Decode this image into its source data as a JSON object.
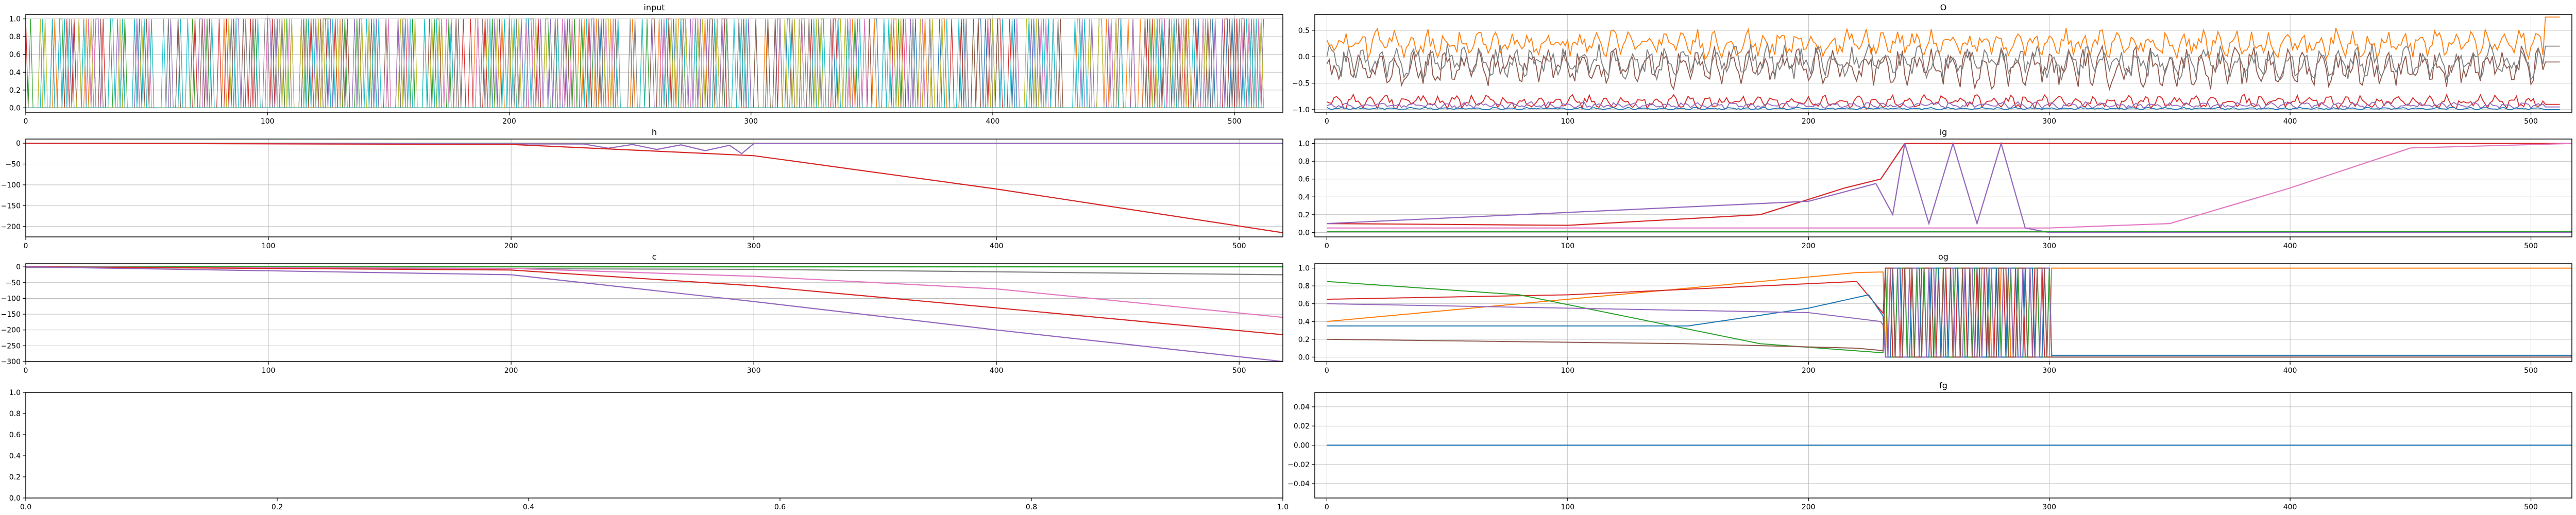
{
  "figure": {
    "palette": [
      "#1f77b4",
      "#ff7f0e",
      "#2ca02c",
      "#d62728",
      "#9467bd",
      "#8c564b",
      "#e377c2",
      "#7f7f7f",
      "#bcbd22",
      "#17becf"
    ]
  },
  "chart_data": [
    {
      "id": "input",
      "type": "line",
      "title": "input",
      "xlim": [
        0,
        520
      ],
      "ylim": [
        -0.05,
        1.05
      ],
      "xticks": [
        0,
        100,
        200,
        300,
        400,
        500
      ],
      "xtick_labels": [
        "0",
        "100",
        "200",
        "300",
        "400",
        "500"
      ],
      "yticks": [
        0.0,
        0.2,
        0.4,
        0.6,
        0.8,
        1.0
      ],
      "ytick_labels": [
        "0.0",
        "0.2",
        "0.4",
        "0.6",
        "0.8",
        "1.0"
      ],
      "grid": true,
      "series_count": 10,
      "description": "dense random one-hot style signals between 0 and 1 for steps 0-512"
    },
    {
      "id": "o",
      "type": "line",
      "title": "O",
      "xlim": [
        -5,
        517
      ],
      "ylim": [
        -1.05,
        0.8
      ],
      "xticks": [
        0,
        100,
        200,
        300,
        400,
        500
      ],
      "xtick_labels": [
        "0",
        "100",
        "200",
        "300",
        "400",
        "500"
      ],
      "yticks": [
        -1.0,
        -0.5,
        0.0,
        0.5
      ],
      "ytick_labels": [
        "−1.0",
        "−0.5",
        "0.0",
        "0.5"
      ],
      "grid": true,
      "series": [
        {
          "color_index": 1,
          "base": 0.25,
          "amp": 0.25,
          "end": 0.75
        },
        {
          "color_index": 5,
          "base": -0.2,
          "amp": 0.35,
          "end": -0.1
        },
        {
          "color_index": 7,
          "base": -0.1,
          "amp": 0.3,
          "end": 0.2
        },
        {
          "color_index": 3,
          "base": -0.85,
          "amp": 0.12,
          "end": -0.9
        },
        {
          "color_index": 4,
          "base": -0.92,
          "amp": 0.06,
          "end": -0.95
        },
        {
          "color_index": 0,
          "base": -0.98,
          "amp": 0.02,
          "end": -1.0
        }
      ]
    },
    {
      "id": "h",
      "type": "line",
      "title": "h",
      "xlim": [
        0,
        518
      ],
      "ylim": [
        -225,
        10
      ],
      "xticks": [
        0,
        100,
        200,
        300,
        400,
        500
      ],
      "xtick_labels": [
        "0",
        "100",
        "200",
        "300",
        "400",
        "500"
      ],
      "yticks": [
        0,
        -50,
        -100,
        -150,
        -200
      ],
      "ytick_labels": [
        "0",
        "−50",
        "−100",
        "−150",
        "−200"
      ],
      "grid": true,
      "series": [
        {
          "color_index": 2,
          "points": [
            [
              0,
              0
            ],
            [
              518,
              0
            ]
          ]
        },
        {
          "color_index": 7,
          "points": [
            [
              0,
              -1
            ],
            [
              518,
              -1
            ]
          ]
        },
        {
          "color_index": 4,
          "points": [
            [
              0,
              0
            ],
            [
              230,
              -2
            ],
            [
              240,
              -12
            ],
            [
              250,
              -3
            ],
            [
              260,
              -15
            ],
            [
              270,
              -4
            ],
            [
              280,
              -18
            ],
            [
              290,
              -5
            ],
            [
              295,
              -25
            ],
            [
              300,
              -1
            ],
            [
              518,
              -1
            ]
          ]
        },
        {
          "color_index": 3,
          "points": [
            [
              0,
              0
            ],
            [
              200,
              -3
            ],
            [
              300,
              -30
            ],
            [
              400,
              -110
            ],
            [
              518,
              -215
            ]
          ]
        }
      ]
    },
    {
      "id": "ig",
      "type": "line",
      "title": "ig",
      "xlim": [
        -5,
        517
      ],
      "ylim": [
        -0.05,
        1.05
      ],
      "xticks": [
        0,
        100,
        200,
        300,
        400,
        500
      ],
      "xtick_labels": [
        "0",
        "100",
        "200",
        "300",
        "400",
        "500"
      ],
      "yticks": [
        0.0,
        0.2,
        0.4,
        0.6,
        0.8,
        1.0
      ],
      "ytick_labels": [
        "0.0",
        "0.2",
        "0.4",
        "0.6",
        "0.8",
        "1.0"
      ],
      "grid": true,
      "series": [
        {
          "color_index": 3,
          "points": [
            [
              0,
              0.1
            ],
            [
              100,
              0.08
            ],
            [
              180,
              0.2
            ],
            [
              215,
              0.5
            ],
            [
              230,
              0.6
            ],
            [
              240,
              1.0
            ],
            [
              300,
              1.0
            ],
            [
              517,
              1.0
            ]
          ]
        },
        {
          "color_index": 6,
          "points": [
            [
              0,
              0.05
            ],
            [
              300,
              0.05
            ],
            [
              350,
              0.1
            ],
            [
              400,
              0.5
            ],
            [
              450,
              0.95
            ],
            [
              517,
              1.0
            ]
          ]
        },
        {
          "color_index": 4,
          "points": [
            [
              0,
              0.1
            ],
            [
              200,
              0.35
            ],
            [
              228,
              0.55
            ],
            [
              235,
              0.2
            ],
            [
              240,
              1.0
            ],
            [
              250,
              0.1
            ],
            [
              260,
              1.0
            ],
            [
              270,
              0.1
            ],
            [
              280,
              1.0
            ],
            [
              290,
              0.05
            ],
            [
              300,
              0.0
            ],
            [
              517,
              0.0
            ]
          ]
        },
        {
          "color_index": 2,
          "points": [
            [
              0,
              0.01
            ],
            [
              517,
              0.01
            ]
          ]
        }
      ]
    },
    {
      "id": "c",
      "type": "line",
      "title": "c",
      "xlim": [
        0,
        518
      ],
      "ylim": [
        -300,
        10
      ],
      "xticks": [
        0,
        100,
        200,
        300,
        400,
        500
      ],
      "xtick_labels": [
        "0",
        "100",
        "200",
        "300",
        "400",
        "500"
      ],
      "yticks": [
        0,
        -50,
        -100,
        -150,
        -200,
        -250,
        -300
      ],
      "ytick_labels": [
        "0",
        "−50",
        "−100",
        "−150",
        "−200",
        "−250",
        "−300"
      ],
      "grid": true,
      "series": [
        {
          "color_index": 2,
          "points": [
            [
              0,
              0
            ],
            [
              518,
              0
            ]
          ]
        },
        {
          "color_index": 7,
          "points": [
            [
              0,
              -2
            ],
            [
              300,
              -8
            ],
            [
              518,
              -25
            ]
          ]
        },
        {
          "color_index": 6,
          "points": [
            [
              0,
              0
            ],
            [
              200,
              -5
            ],
            [
              300,
              -30
            ],
            [
              400,
              -70
            ],
            [
              518,
              -160
            ]
          ]
        },
        {
          "color_index": 3,
          "points": [
            [
              0,
              0
            ],
            [
              200,
              -10
            ],
            [
              300,
              -60
            ],
            [
              400,
              -130
            ],
            [
              518,
              -215
            ]
          ]
        },
        {
          "color_index": 4,
          "points": [
            [
              0,
              0
            ],
            [
              200,
              -25
            ],
            [
              300,
              -110
            ],
            [
              400,
              -200
            ],
            [
              518,
              -300
            ]
          ]
        }
      ]
    },
    {
      "id": "og",
      "type": "line",
      "title": "og",
      "xlim": [
        -5,
        517
      ],
      "ylim": [
        -0.05,
        1.05
      ],
      "xticks": [
        0,
        100,
        200,
        300,
        400,
        500
      ],
      "xtick_labels": [
        "0",
        "100",
        "200",
        "300",
        "400",
        "500"
      ],
      "yticks": [
        0.0,
        0.2,
        0.4,
        0.6,
        0.8,
        1.0
      ],
      "ytick_labels": [
        "0.0",
        "0.2",
        "0.4",
        "0.6",
        "0.8",
        "1.0"
      ],
      "grid": true,
      "series": [
        {
          "color_index": 1,
          "points": [
            [
              0,
              0.4
            ],
            [
              120,
              0.7
            ],
            [
              220,
              0.95
            ],
            [
              300,
              1.0
            ],
            [
              517,
              1.0
            ]
          ]
        },
        {
          "color_index": 3,
          "points": [
            [
              0,
              0.65
            ],
            [
              100,
              0.7
            ],
            [
              220,
              0.85
            ],
            [
              240,
              0.2
            ],
            [
              300,
              0.0
            ],
            [
              517,
              0.0
            ]
          ]
        },
        {
          "color_index": 2,
          "points": [
            [
              0,
              0.85
            ],
            [
              80,
              0.7
            ],
            [
              180,
              0.15
            ],
            [
              230,
              0.05
            ],
            [
              300,
              0.0
            ],
            [
              517,
              0.0
            ]
          ]
        },
        {
          "color_index": 0,
          "points": [
            [
              0,
              0.35
            ],
            [
              150,
              0.35
            ],
            [
              200,
              0.55
            ],
            [
              225,
              0.7
            ],
            [
              240,
              0.1
            ],
            [
              300,
              0.02
            ],
            [
              517,
              0.02
            ]
          ]
        },
        {
          "color_index": 4,
          "points": [
            [
              0,
              0.6
            ],
            [
              200,
              0.5
            ],
            [
              230,
              0.4
            ],
            [
              240,
              0.0
            ],
            [
              300,
              0.0
            ],
            [
              517,
              0.0
            ]
          ]
        },
        {
          "color_index": 5,
          "points": [
            [
              0,
              0.2
            ],
            [
              150,
              0.15
            ],
            [
              220,
              0.1
            ],
            [
              240,
              0.05
            ],
            [
              300,
              0.0
            ],
            [
              517,
              0.0
            ]
          ]
        }
      ],
      "oscillation": {
        "x_start": 232,
        "x_end": 300
      }
    },
    {
      "id": "empty",
      "type": "line",
      "title": "",
      "xlim": [
        0.0,
        1.0
      ],
      "ylim": [
        0.0,
        1.0
      ],
      "xticks": [
        0.0,
        0.2,
        0.4,
        0.6,
        0.8,
        1.0
      ],
      "xtick_labels": [
        "0.0",
        "0.2",
        "0.4",
        "0.6",
        "0.8",
        "1.0"
      ],
      "yticks": [
        0.0,
        0.2,
        0.4,
        0.6,
        0.8,
        1.0
      ],
      "ytick_labels": [
        "0.0",
        "0.2",
        "0.4",
        "0.6",
        "0.8",
        "1.0"
      ],
      "grid": false,
      "series": []
    },
    {
      "id": "fg",
      "type": "line",
      "title": "fg",
      "xlim": [
        -5,
        517
      ],
      "ylim": [
        -0.055,
        0.055
      ],
      "xticks": [
        0,
        100,
        200,
        300,
        400,
        500
      ],
      "xtick_labels": [
        "0",
        "100",
        "200",
        "300",
        "400",
        "500"
      ],
      "yticks": [
        -0.04,
        -0.02,
        0.0,
        0.02,
        0.04
      ],
      "ytick_labels": [
        "−0.04",
        "−0.02",
        "0.00",
        "0.02",
        "0.04"
      ],
      "grid": true,
      "series": [
        {
          "color_index": 0,
          "points": [
            [
              0,
              0
            ],
            [
              517,
              0
            ]
          ]
        }
      ]
    }
  ]
}
